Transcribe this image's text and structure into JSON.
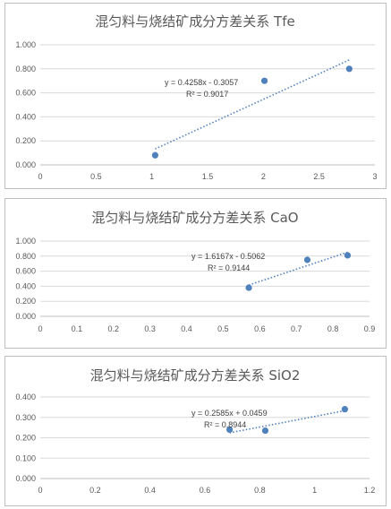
{
  "chart_data": [
    {
      "type": "scatter",
      "title": "混匀料与烧结矿成分方差关系 Tfe",
      "x": [
        1.03,
        2.01,
        2.77
      ],
      "y": [
        0.08,
        0.7,
        0.8
      ],
      "xlim": [
        0,
        3
      ],
      "ylim": [
        0,
        1.0
      ],
      "xticks": [
        "0",
        "0.5",
        "1",
        "1.5",
        "2",
        "2.5",
        "3"
      ],
      "yticks": [
        "0.000",
        "0.200",
        "0.400",
        "0.600",
        "0.800",
        "1.000"
      ],
      "trendline": {
        "slope": 0.4258,
        "intercept": -0.3057,
        "x_range": [
          1.03,
          2.77
        ]
      },
      "equation": "y = 0.4258x - 0.3057",
      "r_squared": "R² = 0.9017",
      "grid": true,
      "color": "#4f81bd"
    },
    {
      "type": "scatter",
      "title": "混匀料与烧结矿成分方差关系 CaO",
      "x": [
        0.57,
        0.73,
        0.84
      ],
      "y": [
        0.38,
        0.75,
        0.81
      ],
      "xlim": [
        0,
        0.9
      ],
      "ylim": [
        0,
        1.0
      ],
      "xticks": [
        "0",
        "0.1",
        "0.2",
        "0.3",
        "0.4",
        "0.5",
        "0.6",
        "0.7",
        "0.8",
        "0.9"
      ],
      "yticks": [
        "0.000",
        "0.200",
        "0.400",
        "0.600",
        "0.800",
        "1.000"
      ],
      "trendline": {
        "slope": 1.6167,
        "intercept": -0.5062,
        "x_range": [
          0.57,
          0.84
        ]
      },
      "equation": "y = 1.6167x - 0.5062",
      "r_squared": "R² = 0.9144",
      "grid": true,
      "color": "#4f81bd"
    },
    {
      "type": "scatter",
      "title": "混匀料与烧结矿成分方差关系 SiO2",
      "x": [
        0.69,
        0.82,
        1.11
      ],
      "y": [
        0.24,
        0.235,
        0.34
      ],
      "xlim": [
        0,
        1.2
      ],
      "ylim": [
        0,
        0.4
      ],
      "xticks": [
        "0",
        "0.2",
        "0.4",
        "0.6",
        "0.8",
        "1",
        "1.2"
      ],
      "yticks": [
        "0.000",
        "0.100",
        "0.200",
        "0.300",
        "0.400"
      ],
      "trendline": {
        "slope": 0.2585,
        "intercept": 0.0459,
        "x_range": [
          0.69,
          1.11
        ]
      },
      "equation": "y = 0.2585x + 0.0459",
      "r_squared": "R² = 0.8944",
      "grid": true,
      "color": "#4f81bd"
    }
  ]
}
